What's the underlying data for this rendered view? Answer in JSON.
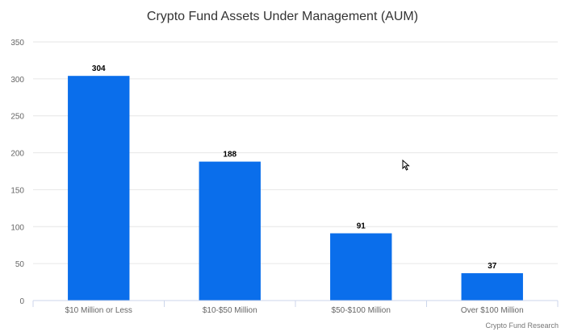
{
  "chart_data": {
    "type": "bar",
    "title": "Crypto Fund Assets Under Management (AUM)",
    "categories": [
      "$10 Million or Less",
      "$10-$50 Million",
      "$50-$100 Million",
      "Over $100 Million"
    ],
    "values": [
      304,
      188,
      91,
      37
    ],
    "data_labels": [
      "304",
      "188",
      "91",
      "37"
    ],
    "ylim": [
      0,
      350
    ],
    "yticks": [
      0,
      50,
      100,
      150,
      200,
      250,
      300,
      350
    ],
    "grid": true,
    "legend": "none",
    "xlabel": "",
    "ylabel": "",
    "colors": {
      "bar": "#0A6EEB",
      "grid": "#E6E6E6",
      "axis": "#CCD6EB",
      "tick_text": "#666666",
      "label_text": "#000000"
    }
  },
  "credits": "Crypto Fund Research",
  "icons": {
    "cursor": "mouse-pointer-icon"
  }
}
